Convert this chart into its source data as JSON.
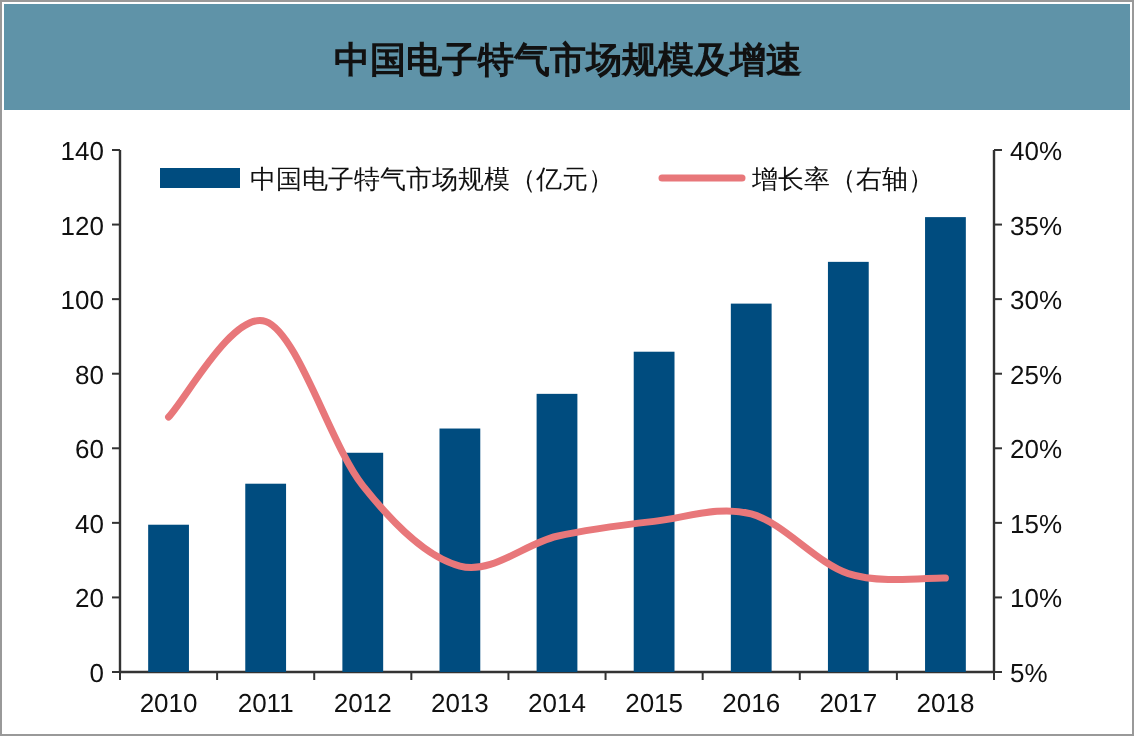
{
  "chart_data": {
    "type": "bar",
    "title": "中国电子特气市场规模及增速",
    "categories": [
      "2010",
      "2011",
      "2012",
      "2013",
      "2014",
      "2015",
      "2016",
      "2017",
      "2018"
    ],
    "series": [
      {
        "name": "中国电子特气市场规模（亿元）",
        "color": "#004c7f",
        "values": [
          39.5,
          50.5,
          58.8,
          65.3,
          74.6,
          85.9,
          98.8,
          110,
          122
        ]
      },
      {
        "name": "增长率（右轴）",
        "type": "line",
        "axis": "y2",
        "color": "#e8777a",
        "values": [
          22.1,
          28.5,
          17.5,
          12.1,
          14.1,
          15.1,
          15.6,
          11.6,
          11.3
        ]
      }
    ],
    "ylim": [
      0,
      140
    ],
    "yticks": [
      0,
      20,
      40,
      60,
      80,
      100,
      120,
      140
    ],
    "y2lim": [
      5,
      40
    ],
    "y2ticks": [
      {
        "value": 5,
        "label": "5%"
      },
      {
        "value": 10,
        "label": "10%"
      },
      {
        "value": 15,
        "label": "15%"
      },
      {
        "value": 20,
        "label": "20%"
      },
      {
        "value": 25,
        "label": "25%"
      },
      {
        "value": 30,
        "label": "30%"
      },
      {
        "value": 35,
        "label": "35%"
      },
      {
        "value": 40,
        "label": "40%"
      }
    ],
    "legend": "top",
    "grid": false
  }
}
